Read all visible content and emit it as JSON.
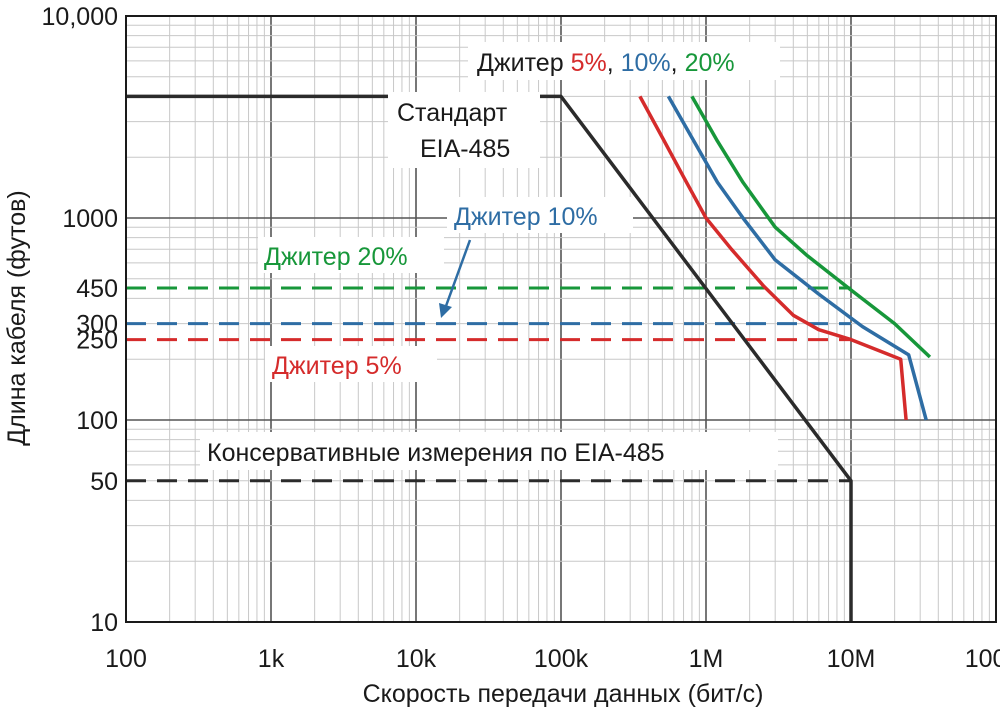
{
  "chart_data": {
    "type": "line",
    "xscale": "log",
    "yscale": "log",
    "xlim": [
      100,
      100000000
    ],
    "ylim": [
      10,
      10000
    ],
    "grid": true,
    "xlabel": "Скорость передачи данных (бит/с)",
    "ylabel": "Длина кабеля (футов)",
    "x_ticks": [
      {
        "value": 100,
        "label": "100"
      },
      {
        "value": 1000,
        "label": "1k"
      },
      {
        "value": 10000,
        "label": "10k"
      },
      {
        "value": 100000,
        "label": "100k"
      },
      {
        "value": 1000000,
        "label": "1M"
      },
      {
        "value": 10000000,
        "label": "10M"
      },
      {
        "value": 100000000,
        "label": "100M"
      }
    ],
    "y_ticks": [
      {
        "value": 10000,
        "label": "10,000"
      },
      {
        "value": 1000,
        "label": "1000"
      },
      {
        "value": 100,
        "label": "100"
      },
      {
        "value": 50,
        "label": "50"
      },
      {
        "value": 10,
        "label": "10"
      }
    ],
    "y_ref_ticks": [
      {
        "value": 450,
        "label": "450",
        "color": "#17973a"
      },
      {
        "value": 300,
        "label": "300",
        "color": "#2e6da4"
      },
      {
        "value": 250,
        "label": "250",
        "color": "#d52b2b"
      }
    ],
    "series": [
      {
        "key": "standard",
        "color": "#2b2b2b",
        "points": [
          [
            100,
            4000
          ],
          [
            100000,
            4000
          ],
          [
            10000000,
            50
          ],
          [
            10000000,
            10
          ]
        ]
      },
      {
        "key": "jitter5",
        "color": "#d52b2b",
        "points": [
          [
            350000,
            4000
          ],
          [
            500000,
            2500
          ],
          [
            700000,
            1600
          ],
          [
            1000000,
            1000
          ],
          [
            1500000,
            700
          ],
          [
            2500000,
            460
          ],
          [
            4000000,
            330
          ],
          [
            6000000,
            280
          ],
          [
            10000000,
            250
          ],
          [
            22000000,
            200
          ],
          [
            24000000,
            100
          ]
        ]
      },
      {
        "key": "jitter10",
        "color": "#2e6da4",
        "points": [
          [
            550000,
            4000
          ],
          [
            800000,
            2500
          ],
          [
            1200000,
            1500
          ],
          [
            1800000,
            1000
          ],
          [
            3000000,
            620
          ],
          [
            6000000,
            420
          ],
          [
            12000000,
            290
          ],
          [
            25000000,
            210
          ],
          [
            33000000,
            100
          ]
        ]
      },
      {
        "key": "jitter20",
        "color": "#17973a",
        "points": [
          [
            800000,
            4000
          ],
          [
            1200000,
            2400
          ],
          [
            1800000,
            1500
          ],
          [
            3000000,
            900
          ],
          [
            5000000,
            650
          ],
          [
            10000000,
            440
          ],
          [
            20000000,
            300
          ],
          [
            35000000,
            205
          ]
        ]
      }
    ],
    "reference_lines": [
      {
        "key": "ref450",
        "value": 450,
        "x_from": 100,
        "x_to": 10000000,
        "color": "#17973a"
      },
      {
        "key": "ref300",
        "value": 300,
        "x_from": 100,
        "x_to": 10000000,
        "color": "#2e6da4"
      },
      {
        "key": "ref250",
        "value": 250,
        "x_from": 100,
        "x_to": 10000000,
        "color": "#d52b2b"
      },
      {
        "key": "ref50",
        "value": 50,
        "x_from": 100,
        "x_to": 10000000,
        "color": "#2b2b2b"
      }
    ],
    "annotations": {
      "legend_prefix": "Джитер",
      "legend_5": "5%",
      "legend_comma1": ",",
      "legend_10": "10%",
      "legend_comma2": ",",
      "legend_20": "20%",
      "standard_line1": "Стандарт",
      "standard_line2": "EIA-485",
      "jitter10_label": "Джитер 10%",
      "jitter20_label": "Джитер 20%",
      "jitter5_label": "Джитер 5%",
      "conservative_label": "Консервативные измерения по EIA-485"
    },
    "colors": {
      "red": "#d52b2b",
      "blue": "#2e6da4",
      "green": "#17973a",
      "black": "#2b2b2b"
    }
  }
}
